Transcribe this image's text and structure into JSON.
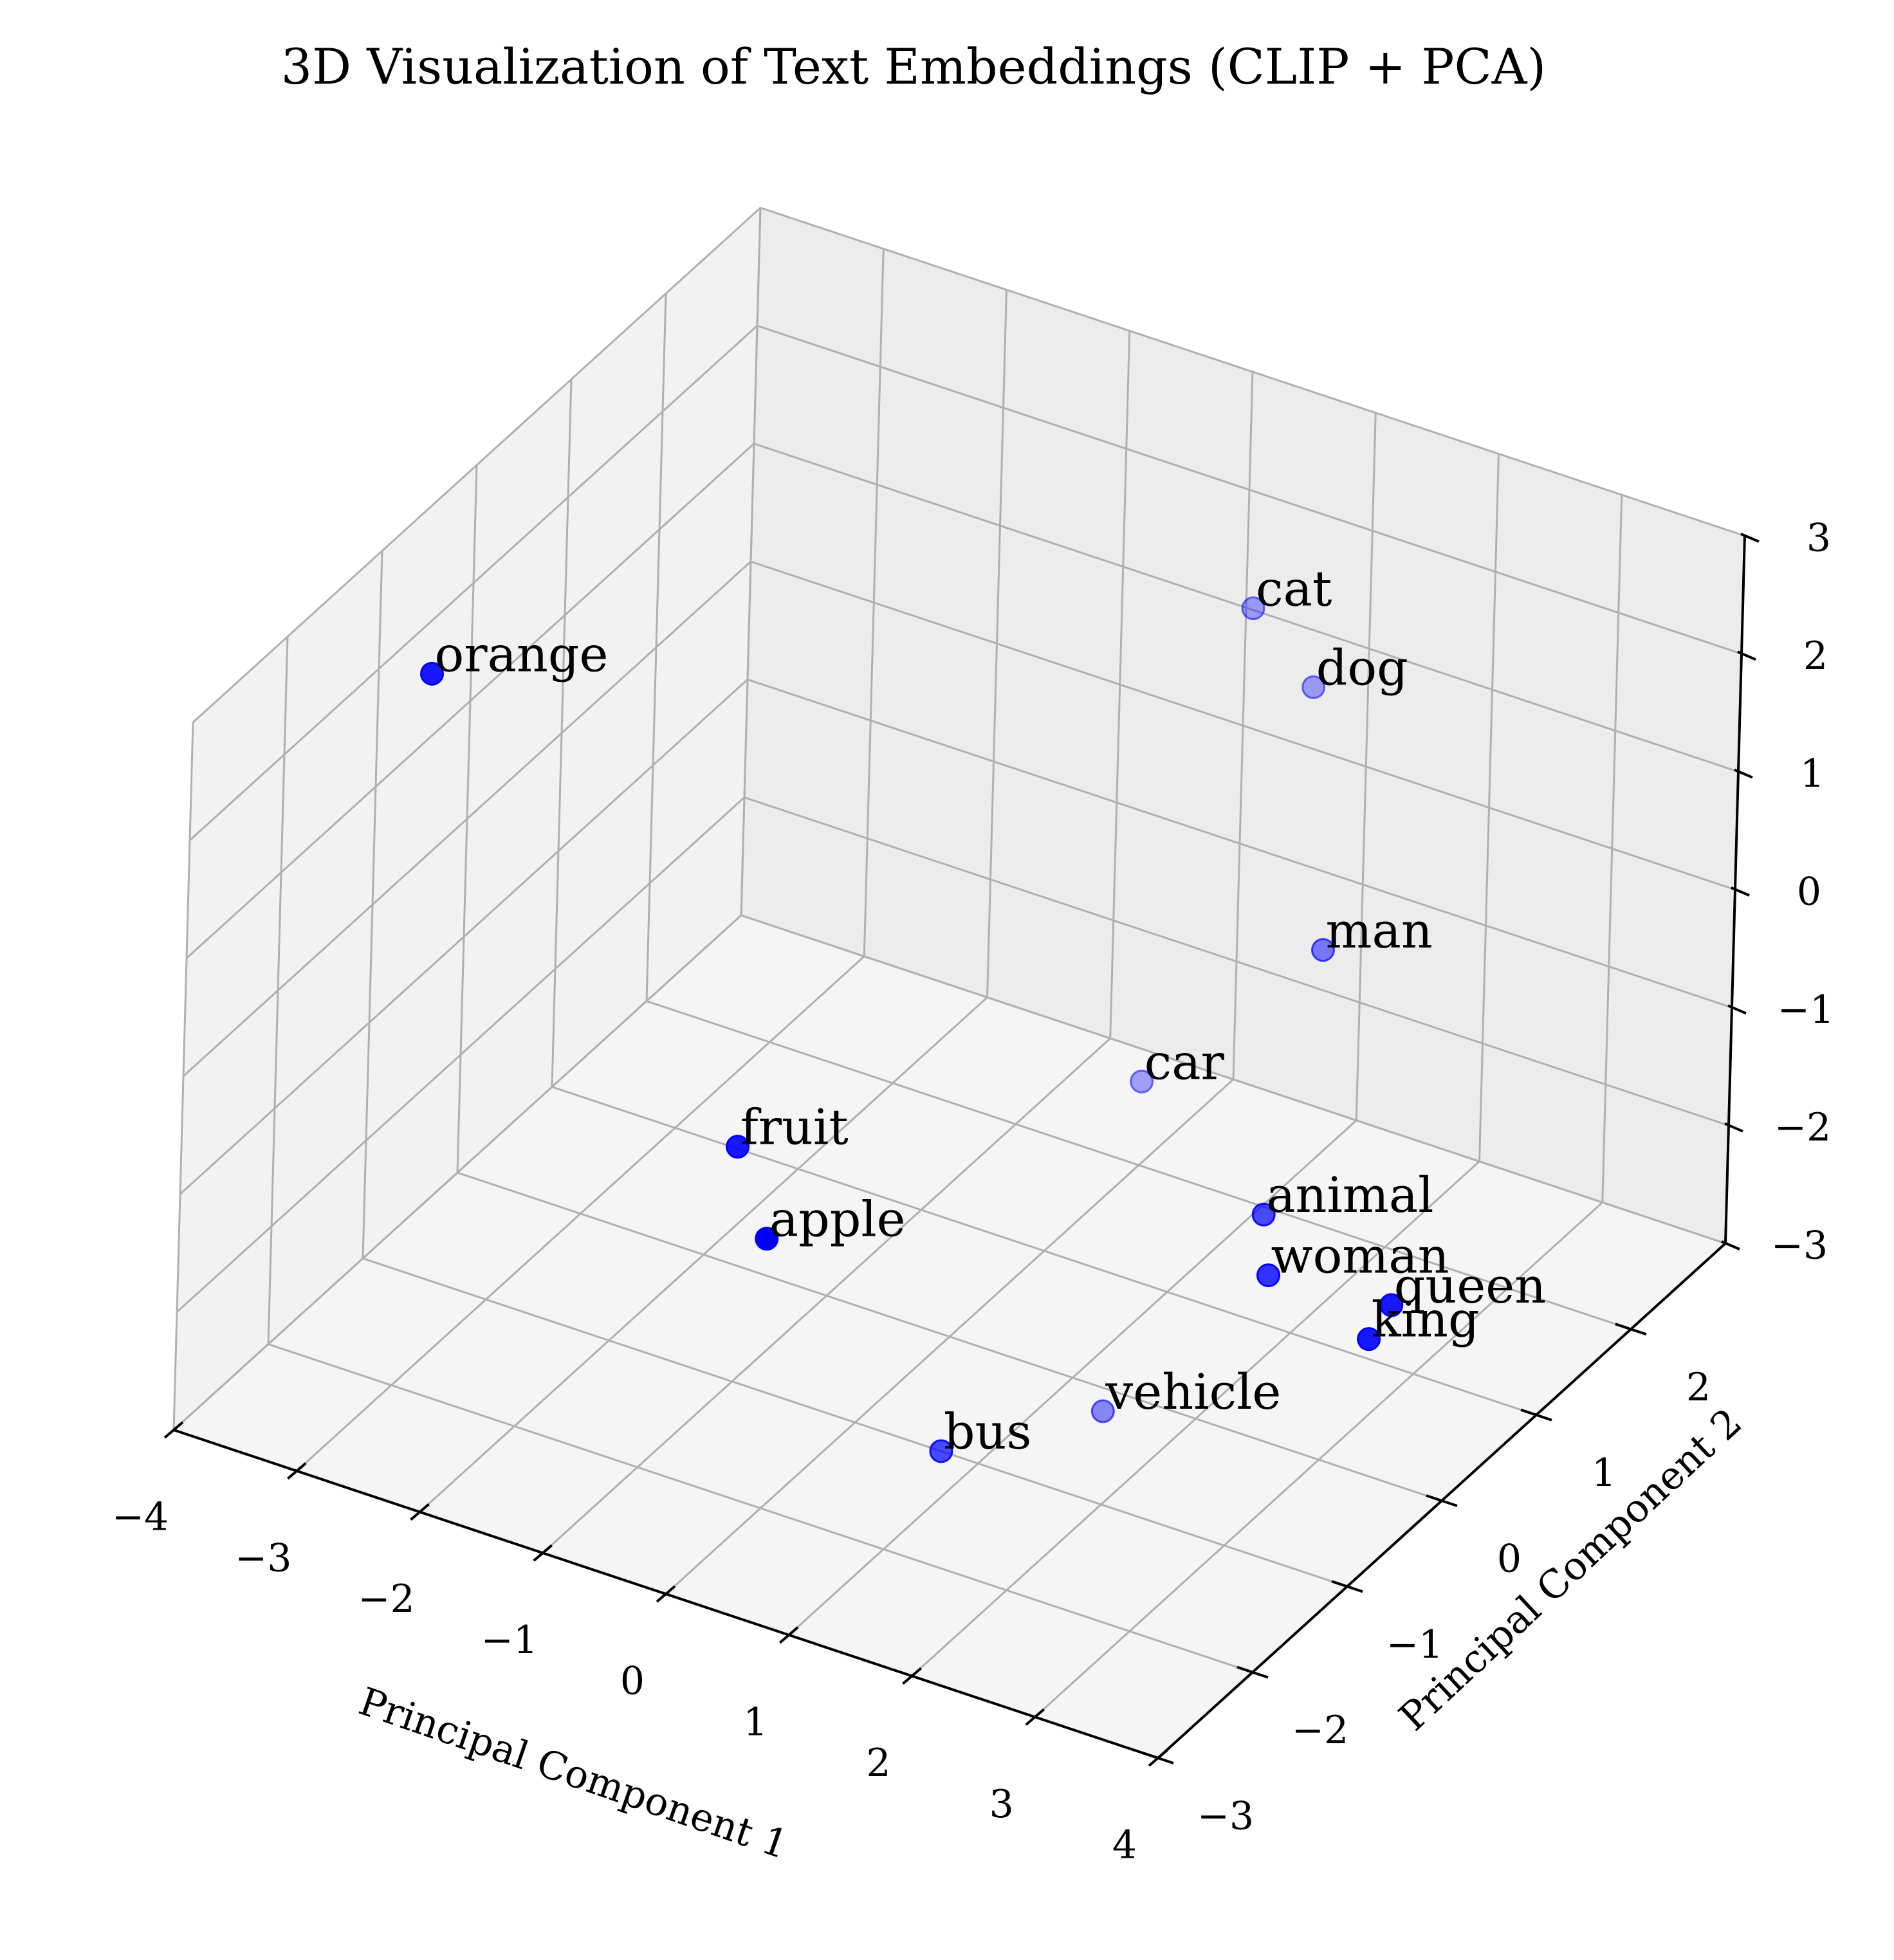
{
  "chart_data": {
    "type": "scatter3d",
    "title": "3D Visualization of Text Embeddings (CLIP + PCA)",
    "xlabel": "Principal Component 1",
    "ylabel": "Principal Component 2",
    "zlabel": "",
    "xlim": [
      -4,
      4
    ],
    "ylim": [
      -3,
      3
    ],
    "zlim": [
      -3,
      3
    ],
    "xticks": [
      "−4",
      "−3",
      "−2",
      "−1",
      "0",
      "1",
      "2",
      "3",
      "4"
    ],
    "yticks": [
      "−3",
      "−2",
      "−1",
      "0",
      "1",
      "2"
    ],
    "zticks": [
      "−3",
      "−2",
      "−1",
      "0",
      "1",
      "2",
      "3"
    ],
    "grid": true,
    "marker_color": "#0000ff",
    "points": [
      {
        "label": "orange",
        "x": -3.2,
        "y": -1.5,
        "z": 2.6,
        "alpha": 0.9
      },
      {
        "label": "cat",
        "x": 0.8,
        "y": 2.0,
        "z": 2.0,
        "alpha": 0.35
      },
      {
        "label": "dog",
        "x": 1.6,
        "y": 1.6,
        "z": 1.9,
        "alpha": 0.35
      },
      {
        "label": "man",
        "x": 2.7,
        "y": 0.3,
        "z": 1.0,
        "alpha": 0.5
      },
      {
        "label": "animal",
        "x": 2.8,
        "y": -0.4,
        "z": -0.7,
        "alpha": 0.7
      },
      {
        "label": "woman",
        "x": 3.0,
        "y": -0.6,
        "z": -1.0,
        "alpha": 0.8
      },
      {
        "label": "queen",
        "x": 3.7,
        "y": -0.2,
        "z": -1.3,
        "alpha": 0.9
      },
      {
        "label": "king",
        "x": 3.6,
        "y": -0.3,
        "z": -1.55,
        "alpha": 0.9
      },
      {
        "label": "fruit",
        "x": -1.6,
        "y": -0.2,
        "z": -1.8,
        "alpha": 0.9
      },
      {
        "label": "apple",
        "x": -0.9,
        "y": -0.8,
        "z": -1.9,
        "alpha": 1.0
      },
      {
        "label": "car",
        "x": 0.6,
        "y": 1.2,
        "z": -1.5,
        "alpha": 0.35
      },
      {
        "label": "bus",
        "x": 0.7,
        "y": -1.0,
        "z": -3.0,
        "alpha": 0.7
      },
      {
        "label": "vehicle",
        "x": 1.4,
        "y": -0.2,
        "z": -3.0,
        "alpha": 0.45
      }
    ]
  }
}
